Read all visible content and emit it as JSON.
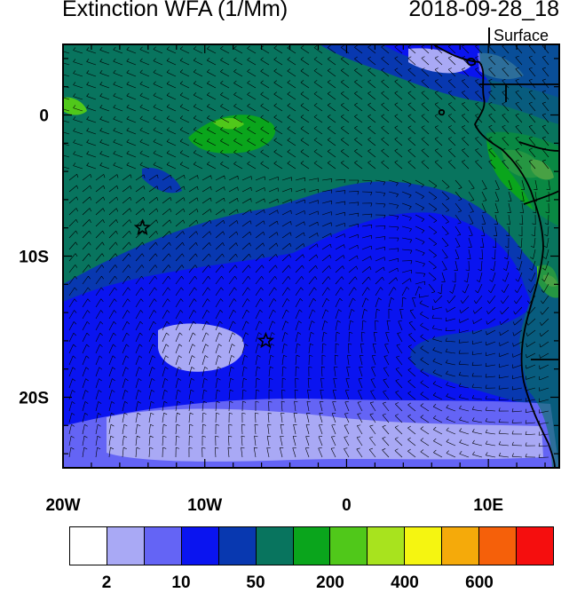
{
  "header": {
    "title": "Extinction WFA (1/Mm)",
    "datetime": "2018-09-28_18",
    "level": "Surface"
  },
  "map": {
    "lon_range": [
      -20,
      15
    ],
    "lat_range": [
      -25,
      5
    ],
    "x_ticks": [
      {
        "value": -20,
        "label": "20W"
      },
      {
        "value": -10,
        "label": "10W"
      },
      {
        "value": 0,
        "label": "0"
      },
      {
        "value": 10,
        "label": "10E"
      }
    ],
    "y_ticks": [
      {
        "value": 0,
        "label": "0"
      },
      {
        "value": -10,
        "label": "10S"
      },
      {
        "value": -20,
        "label": "20S"
      }
    ],
    "markers": [
      {
        "lon": -14.4,
        "lat": -8.0,
        "symbol": "star-icon"
      },
      {
        "lon": -5.7,
        "lat": -16.0,
        "symbol": "star-icon"
      }
    ]
  },
  "colorbar": {
    "colors": [
      "#ffffff",
      "#a9a9f5",
      "#6464f5",
      "#0a14f0",
      "#0838b0",
      "#08745e",
      "#0aa51c",
      "#50c81a",
      "#a8e31e",
      "#f5f511",
      "#f5aa0a",
      "#f5600a",
      "#f50e0e"
    ],
    "labels": [
      {
        "index": 1,
        "text": "2"
      },
      {
        "index": 3,
        "text": "10"
      },
      {
        "index": 5,
        "text": "50"
      },
      {
        "index": 7,
        "text": "200"
      },
      {
        "index": 9,
        "text": "400"
      },
      {
        "index": 11,
        "text": "600"
      }
    ]
  }
}
